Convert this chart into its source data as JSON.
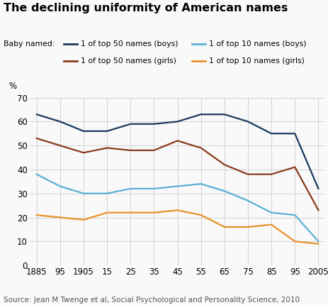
{
  "title": "The declining uniformity of American names",
  "source": "Source: Jean M Twenge et al, Social Psychological and Personality Science, 2010",
  "ylabel": "%",
  "xlabel_years": [
    1885,
    1895,
    1905,
    1915,
    1925,
    1935,
    1945,
    1955,
    1965,
    1975,
    1985,
    1995,
    2005
  ],
  "xtick_labels": [
    "1885",
    "95",
    "1905",
    "15",
    "25",
    "35",
    "45",
    "55",
    "65",
    "75",
    "85",
    "95",
    "2005"
  ],
  "series": [
    {
      "label": "1 of top 50 names (boys)",
      "color": "#1a3a5c",
      "values": [
        63,
        60,
        56,
        56,
        59,
        59,
        60,
        63,
        63,
        60,
        55,
        55,
        32
      ]
    },
    {
      "label": "1 of top 10 names (boys)",
      "color": "#5aaed4",
      "values": [
        38,
        33,
        30,
        30,
        32,
        32,
        33,
        34,
        31,
        27,
        22,
        21,
        10
      ]
    },
    {
      "label": "1 of top 50 names (girls)",
      "color": "#8b3a1a",
      "values": [
        53,
        50,
        47,
        49,
        48,
        48,
        52,
        49,
        42,
        38,
        38,
        41,
        23
      ]
    },
    {
      "label": "1 of top 10 names (girls)",
      "color": "#e8922a",
      "values": [
        21,
        20,
        19,
        22,
        22,
        22,
        23,
        21,
        16,
        16,
        17,
        10,
        9
      ]
    }
  ],
  "ylim": [
    0,
    70
  ],
  "yticks": [
    0,
    10,
    20,
    30,
    40,
    50,
    60,
    70
  ],
  "background_color": "#f9f9f9",
  "grid_color": "#cccccc",
  "title_fontsize": 11.5,
  "axis_fontsize": 8.5,
  "source_fontsize": 7.5,
  "legend_fontsize": 7.8
}
